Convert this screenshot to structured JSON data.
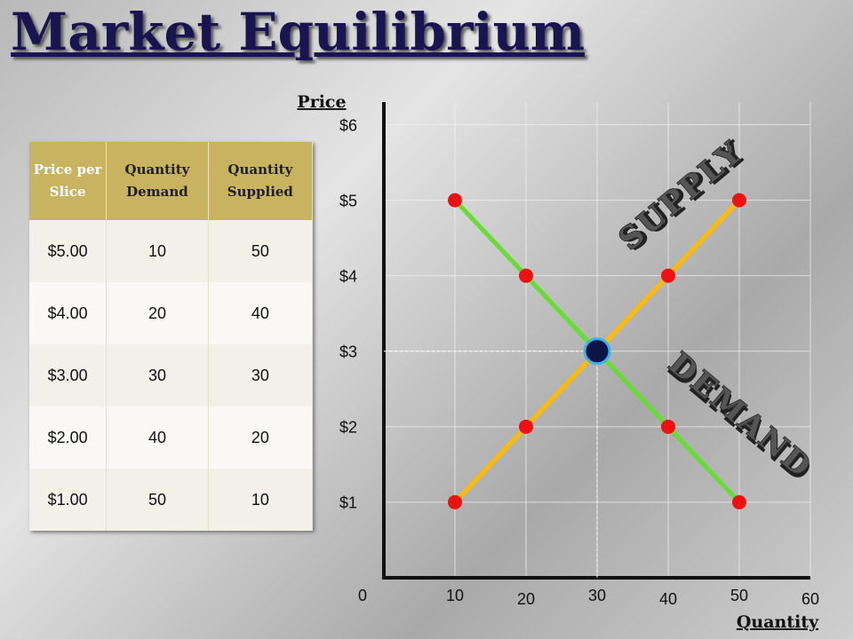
{
  "title": "Market Equilibrium",
  "table": {
    "header": [
      "Price per Slice",
      "Quantity Demand",
      "Quantity Supplied"
    ],
    "rows": [
      [
        "$5.00",
        10,
        50
      ],
      [
        "$4.00",
        20,
        40
      ],
      [
        "$3.00",
        30,
        30
      ],
      [
        "$2.00",
        40,
        20
      ],
      [
        "$1.00",
        50,
        10
      ]
    ]
  },
  "chart_data": {
    "type": "line",
    "y_label": "Price",
    "x_label": "Quantity",
    "xlim": [
      0,
      60
    ],
    "ylim": [
      0,
      6.3
    ],
    "xticks": [
      0,
      10,
      20,
      30,
      40,
      50,
      60
    ],
    "yticks": [
      {
        "value": 1,
        "label": "$1"
      },
      {
        "value": 2,
        "label": "$2"
      },
      {
        "value": 3,
        "label": "$3"
      },
      {
        "value": 4,
        "label": "$4"
      },
      {
        "value": 5,
        "label": "$5"
      },
      {
        "value": 6,
        "label": "$6"
      }
    ],
    "grid": true,
    "series": [
      {
        "name": "SUPPLY",
        "color": "#ffbb00",
        "x": [
          10,
          20,
          30,
          40,
          50
        ],
        "values": [
          1,
          2,
          3,
          4,
          5
        ]
      },
      {
        "name": "DEMAND",
        "color": "#66dd33",
        "x": [
          10,
          20,
          30,
          40,
          50
        ],
        "values": [
          5,
          4,
          3,
          2,
          1
        ]
      }
    ],
    "marker_color": "#ee1111",
    "equilibrium": {
      "x": 30,
      "y": 3,
      "color": "#0d1446"
    }
  }
}
